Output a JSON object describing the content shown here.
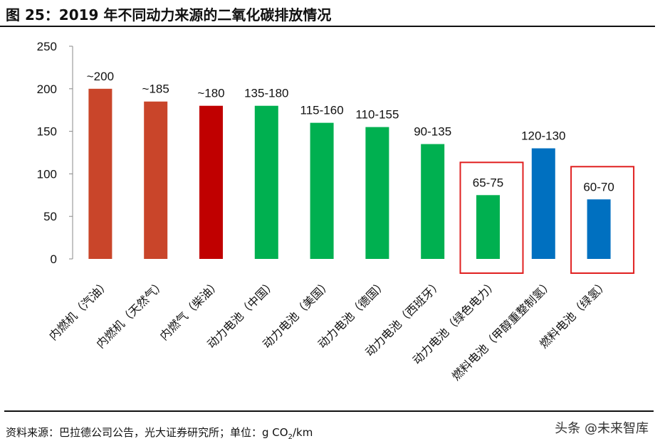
{
  "title": "图 25：2019 年不同动力来源的二氧化碳排放情况",
  "source": {
    "text": "资料来源：巴拉德公司公告，光大证券研究所；单位：g CO",
    "subscript": "2",
    "unit_tail": "/km"
  },
  "watermark": "头条 @未来智库",
  "chart_data": {
    "type": "bar",
    "categories": [
      "内燃机（汽油）",
      "内燃机（天然气）",
      "内燃气（柴油）",
      "动力电池（中国）",
      "动力电池（美国）",
      "动力电池（德国）",
      "动力电池（西班牙）",
      "动力电池（绿色电力）",
      "燃料电池（甲醇重整制氢）",
      "燃料电池（绿氢）"
    ],
    "values": [
      200,
      185,
      180,
      180,
      160,
      155,
      135,
      75,
      130,
      70
    ],
    "data_labels": [
      "~200",
      "~185",
      "~180",
      "135-180",
      "115-160",
      "110-155",
      "90-135",
      "65-75",
      "120-130",
      "60-70"
    ],
    "colors": [
      "#C9452A",
      "#C9452A",
      "#C00000",
      "#00B050",
      "#00B050",
      "#00B050",
      "#00B050",
      "#00B050",
      "#0070C0",
      "#0070C0"
    ],
    "highlighted": [
      "动力电池（绿色电力）",
      "燃料电池（绿氢）"
    ],
    "highlight_color": "#E02020",
    "yticks": [
      0,
      50,
      100,
      150,
      200,
      250
    ],
    "ylim": [
      0,
      250
    ],
    "grid": false,
    "xlabel": "",
    "ylabel": ""
  }
}
